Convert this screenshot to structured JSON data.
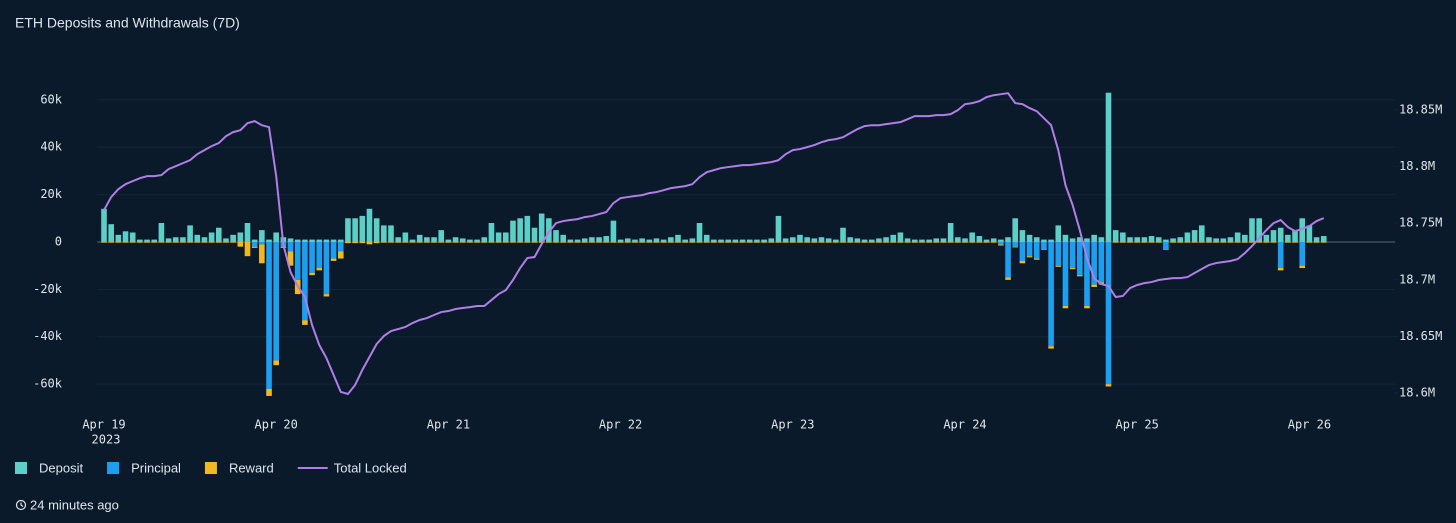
{
  "chart_data": {
    "type": "bar",
    "title": "ETH Deposits and Withdrawals (7D)",
    "x_year": "2023",
    "categories": [
      "Apr 19",
      null,
      null,
      null,
      null,
      null,
      null,
      null,
      null,
      null,
      null,
      null,
      null,
      null,
      null,
      null,
      null,
      null,
      null,
      null,
      null,
      null,
      null,
      null,
      "Apr 20",
      null,
      null,
      null,
      null,
      null,
      null,
      null,
      null,
      null,
      null,
      null,
      null,
      null,
      null,
      null,
      null,
      null,
      null,
      null,
      null,
      null,
      null,
      null,
      "Apr 21",
      null,
      null,
      null,
      null,
      null,
      null,
      null,
      null,
      null,
      null,
      null,
      null,
      null,
      null,
      null,
      null,
      null,
      null,
      null,
      null,
      null,
      null,
      null,
      "Apr 22",
      null,
      null,
      null,
      null,
      null,
      null,
      null,
      null,
      null,
      null,
      null,
      null,
      null,
      null,
      null,
      null,
      null,
      null,
      null,
      null,
      null,
      null,
      null,
      "Apr 23",
      null,
      null,
      null,
      null,
      null,
      null,
      null,
      null,
      null,
      null,
      null,
      null,
      null,
      null,
      null,
      null,
      null,
      null,
      null,
      null,
      null,
      null,
      null,
      "Apr 24",
      null,
      null,
      null,
      null,
      null,
      null,
      null,
      null,
      null,
      null,
      null,
      null,
      null,
      null,
      null,
      null,
      null,
      null,
      null,
      null,
      null,
      null,
      null,
      "Apr 25",
      null,
      null,
      null,
      null,
      null,
      null,
      null,
      null,
      null,
      null,
      null,
      null,
      null,
      null,
      null,
      null,
      null,
      null,
      null,
      null,
      null,
      null,
      null,
      "Apr 26",
      null,
      null
    ],
    "ylim": [
      -66700,
      76800
    ],
    "yticks": [
      {
        "value": -60000,
        "label": "-60k"
      },
      {
        "value": -40000,
        "label": "-40k"
      },
      {
        "value": -20000,
        "label": "-20k"
      },
      0,
      {
        "value": 20000,
        "label": "20k"
      },
      {
        "value": 40000,
        "label": "40k"
      },
      {
        "value": 60000,
        "label": "60k"
      }
    ],
    "y2lim": [
      18593800,
      18894200
    ],
    "y2ticks": [
      {
        "value": 18600000,
        "label": "18.6M"
      },
      {
        "value": 18650000,
        "label": "18.65M"
      },
      {
        "value": 18700000,
        "label": "18.7M"
      },
      {
        "value": 18750000,
        "label": "18.75M"
      },
      {
        "value": 18800000,
        "label": "18.8M"
      },
      {
        "value": 18850000,
        "label": "18.85M"
      }
    ],
    "grid": true,
    "series": [
      {
        "name": "Deposit",
        "color": "#5ccfc6",
        "values": [
          14000,
          7500,
          3000,
          4500,
          4000,
          1000,
          1000,
          1000,
          8000,
          1500,
          2000,
          2000,
          7000,
          3000,
          2000,
          4000,
          6000,
          1500,
          3000,
          4000,
          8000,
          1000,
          5000,
          1000,
          4000,
          2000,
          1500,
          1000,
          1000,
          1000,
          1000,
          1000,
          1000,
          1000,
          10000,
          10000,
          11000,
          14000,
          10000,
          7000,
          7000,
          2000,
          4000,
          1000,
          3000,
          2000,
          2000,
          5000,
          1000,
          2000,
          1500,
          1000,
          1000,
          2000,
          8000,
          4000,
          4000,
          9000,
          10000,
          11000,
          6000,
          12000,
          10000,
          5000,
          3000,
          1000,
          1000,
          1500,
          2000,
          2000,
          2500,
          9000,
          1000,
          1500,
          1000,
          1500,
          1000,
          1500,
          1000,
          2000,
          3000,
          1000,
          1500,
          8000,
          3000,
          1000,
          1000,
          1000,
          1000,
          1000,
          1000,
          1000,
          1000,
          1500,
          11000,
          1500,
          2000,
          3000,
          2000,
          1500,
          2000,
          1500,
          1000,
          6000,
          2000,
          1500,
          1000,
          1000,
          1500,
          2000,
          3000,
          4000,
          1500,
          1000,
          1000,
          1000,
          1500,
          1500,
          8000,
          2000,
          1500,
          4000,
          2500,
          1000,
          1500,
          1000,
          2000,
          10000,
          5000,
          3000,
          2000,
          1000,
          1000,
          7000,
          3000,
          1500,
          2000,
          1500,
          3000,
          2000,
          63000,
          5000,
          4000,
          2000,
          2000,
          2000,
          2500,
          2000,
          1000,
          1500,
          2000,
          4000,
          5000,
          7000,
          2000,
          1500,
          1500,
          2000,
          4000,
          3000,
          10000,
          10000,
          3000,
          5000,
          6000,
          3000,
          5000,
          10000,
          7000,
          2000,
          2500
        ]
      },
      {
        "name": "Principal",
        "color": "#1d9ff0",
        "values": [
          0,
          0,
          0,
          0,
          0,
          0,
          0,
          0,
          0,
          0,
          0,
          0,
          0,
          0,
          0,
          0,
          0,
          0,
          0,
          0,
          0,
          -2000,
          -1000,
          -62000,
          -50000,
          -2000,
          -4000,
          -16000,
          -33000,
          -13000,
          -11000,
          -22000,
          -7000,
          -4000,
          0,
          0,
          0,
          0,
          0,
          0,
          0,
          0,
          0,
          0,
          0,
          0,
          0,
          0,
          0,
          0,
          0,
          0,
          0,
          0,
          0,
          0,
          0,
          0,
          0,
          0,
          0,
          0,
          0,
          0,
          0,
          0,
          0,
          0,
          0,
          0,
          0,
          0,
          0,
          0,
          0,
          0,
          0,
          0,
          0,
          0,
          0,
          0,
          0,
          0,
          0,
          0,
          0,
          0,
          0,
          0,
          0,
          0,
          0,
          0,
          0,
          0,
          0,
          0,
          0,
          0,
          0,
          0,
          0,
          0,
          0,
          0,
          0,
          0,
          0,
          0,
          0,
          0,
          0,
          0,
          0,
          0,
          0,
          0,
          0,
          0,
          0,
          0,
          0,
          0,
          0,
          -1000,
          -15000,
          -2000,
          -8000,
          -6000,
          -7000,
          -3000,
          -44000,
          -10000,
          -27000,
          -11000,
          -14000,
          -27000,
          -18000,
          -17000,
          -60000,
          0,
          0,
          0,
          0,
          0,
          0,
          0,
          -3000,
          0,
          0,
          0,
          0,
          0,
          0,
          0,
          0,
          0,
          0,
          0,
          0,
          0,
          0,
          0,
          -11000,
          0,
          0,
          -10000,
          0,
          0,
          0
        ]
      },
      {
        "name": "Reward",
        "color": "#f1b821",
        "values": [
          -300,
          -300,
          -300,
          -300,
          -300,
          -300,
          -300,
          -300,
          -300,
          -300,
          -300,
          -300,
          -300,
          -300,
          -300,
          -300,
          -300,
          -300,
          -300,
          -2000,
          -6000,
          -500,
          -8000,
          -3000,
          -2000,
          -500,
          -6000,
          -6000,
          -2000,
          -1000,
          -1000,
          -1000,
          -1000,
          -3000,
          -500,
          -500,
          -500,
          -1000,
          -500,
          -300,
          -300,
          -300,
          -300,
          -300,
          -300,
          -300,
          -300,
          -300,
          -300,
          -300,
          -300,
          -300,
          -300,
          -300,
          -300,
          -300,
          -300,
          -300,
          -300,
          -300,
          -300,
          -300,
          -300,
          -300,
          -300,
          -300,
          -300,
          -300,
          -300,
          -300,
          -300,
          -300,
          -300,
          -300,
          -300,
          -300,
          -300,
          -300,
          -300,
          -300,
          -300,
          -300,
          -300,
          -300,
          -300,
          -300,
          -300,
          -300,
          -300,
          -300,
          -300,
          -300,
          -300,
          -300,
          -300,
          -300,
          -300,
          -300,
          -300,
          -300,
          -300,
          -300,
          -300,
          -300,
          -300,
          -300,
          -300,
          -300,
          -300,
          -300,
          -300,
          -300,
          -300,
          -300,
          -300,
          -300,
          -300,
          -300,
          -300,
          -300,
          -300,
          -300,
          -300,
          -300,
          -300,
          -500,
          -1000,
          -300,
          -1000,
          -500,
          -500,
          -300,
          -1000,
          -500,
          -1000,
          -500,
          -500,
          -1000,
          -1000,
          -1000,
          -1000,
          -300,
          -300,
          -300,
          -300,
          -300,
          -300,
          -300,
          -300,
          -300,
          -300,
          -300,
          -300,
          -300,
          -300,
          -300,
          -300,
          -300,
          -300,
          -300,
          -300,
          -300,
          -300,
          -300,
          -1000,
          -300,
          -300,
          -1000,
          -300,
          -300,
          -300
        ]
      },
      {
        "name": "Total Locked",
        "color": "#b07ee6",
        "type": "line",
        "axis": "y2",
        "values": [
          18761600,
          18773100,
          18780100,
          18784500,
          18787200,
          18789800,
          18791600,
          18791600,
          18792500,
          18797800,
          18800400,
          18803100,
          18805700,
          18811000,
          18814600,
          18818100,
          18820800,
          18826900,
          18830500,
          18832200,
          18838400,
          18840200,
          18836600,
          18834900,
          18791600,
          18730700,
          18706800,
          18694500,
          18684800,
          18660000,
          18642400,
          18630900,
          18615900,
          18600900,
          18599100,
          18607100,
          18620300,
          18631800,
          18643300,
          18650300,
          18654700,
          18656500,
          18658300,
          18661800,
          18664500,
          18666200,
          18668900,
          18671500,
          18672400,
          18674200,
          18675100,
          18675900,
          18676800,
          18676800,
          18682100,
          18687400,
          18690900,
          18699800,
          18710400,
          18719200,
          18720100,
          18731600,
          18742200,
          18750100,
          18751900,
          18752800,
          18753600,
          18755400,
          18756300,
          18758100,
          18759800,
          18767800,
          18772200,
          18773100,
          18774000,
          18774800,
          18776600,
          18777500,
          18779200,
          18781000,
          18781900,
          18782800,
          18784500,
          18790700,
          18795100,
          18796900,
          18798700,
          18799600,
          18800400,
          18801300,
          18801300,
          18802200,
          18803100,
          18804000,
          18805700,
          18811000,
          18814600,
          18815500,
          18817200,
          18819000,
          18821600,
          18823400,
          18824300,
          18826000,
          18829600,
          18833100,
          18835800,
          18836600,
          18836600,
          18837500,
          18838400,
          18839300,
          18841900,
          18844600,
          18844600,
          18844600,
          18845500,
          18845500,
          18846400,
          18849900,
          18855200,
          18856100,
          18857800,
          18861400,
          18863100,
          18864000,
          18864900,
          18856100,
          18855200,
          18851700,
          18849000,
          18842800,
          18836600,
          18814600,
          18783700,
          18766000,
          18743900,
          18719200,
          18701500,
          18696200,
          18694500,
          18684800,
          18685700,
          18692700,
          18695400,
          18697100,
          18698000,
          18699800,
          18700700,
          18701500,
          18701500,
          18702400,
          18706000,
          18709500,
          18713000,
          18714800,
          18715700,
          18716600,
          18718300,
          18723600,
          18729800,
          18736900,
          18743900,
          18750100,
          18752800,
          18746600,
          18743000,
          18744800,
          18747500,
          18751900,
          18754500
        ]
      }
    ]
  },
  "updated": "24 minutes ago"
}
